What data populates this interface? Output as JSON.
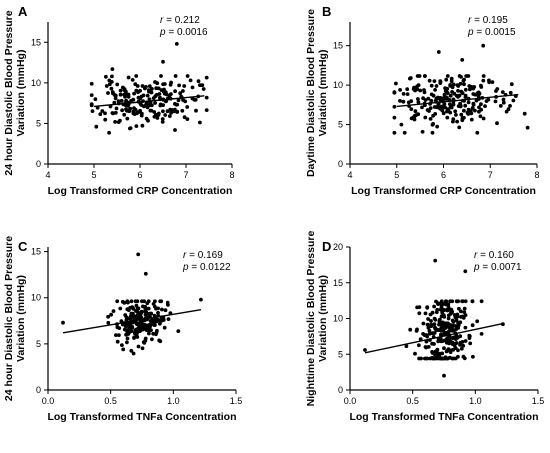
{
  "chart_data": [
    {
      "type": "scatter",
      "panel": "A",
      "xlabel": "Log Transformed CRP Concentration",
      "ylabel_lines": [
        "24 hour Diastolic Blood Pressure",
        "Variation (mmHg)"
      ],
      "xlim": [
        4,
        8
      ],
      "ylim": [
        0,
        17.5
      ],
      "xticks": [
        4,
        5,
        6,
        7,
        8
      ],
      "yticks": [
        0,
        5,
        10,
        15
      ],
      "stat_r": "0.212",
      "stat_p": "0.0016",
      "trend": {
        "x": [
          5.0,
          7.4
        ],
        "y": [
          7.1,
          8.4
        ]
      },
      "points": {
        "center": [
          6.1,
          7.7
        ],
        "spread": [
          0.55,
          1.45
        ],
        "count": 210,
        "seed": 11,
        "xrange": [
          4.95,
          7.45
        ],
        "extra": [
          [
            6.8,
            14.8
          ],
          [
            6.5,
            12.6
          ],
          [
            5.4,
            11.7
          ],
          [
            5.05,
            4.6
          ],
          [
            7.1,
            10.3
          ]
        ]
      }
    },
    {
      "type": "scatter",
      "panel": "B",
      "xlabel": "Log Transformed CRP Concentration",
      "ylabel_lines": [
        "Daytime Diastolic Blood Pressure",
        "Variation (mmHg)"
      ],
      "xlim": [
        4,
        8
      ],
      "ylim": [
        0,
        18
      ],
      "xticks": [
        4,
        5,
        6,
        7,
        8
      ],
      "yticks": [
        0,
        5,
        10,
        15
      ],
      "stat_r": "0.195",
      "stat_p": "0.0015",
      "trend": {
        "x": [
          5.0,
          7.6
        ],
        "y": [
          7.3,
          8.8
        ]
      },
      "points": {
        "center": [
          6.1,
          8.0
        ],
        "spread": [
          0.6,
          1.75
        ],
        "count": 230,
        "seed": 23,
        "xrange": [
          4.95,
          7.8
        ],
        "extra": [
          [
            6.85,
            15.0
          ],
          [
            5.9,
            14.2
          ],
          [
            7.8,
            4.6
          ],
          [
            6.4,
            13.2
          ],
          [
            5.1,
            5.0
          ]
        ]
      }
    },
    {
      "type": "scatter",
      "panel": "C",
      "xlabel": "Log Transformed TNFa Concentration",
      "ylabel_lines": [
        "24 hour Diastolic Blood Pressure",
        "Variation (mmHg)"
      ],
      "xlim": [
        0,
        1.5
      ],
      "ylim": [
        0,
        15.5
      ],
      "xticks": [
        0.0,
        0.5,
        1.0,
        1.5
      ],
      "yticks": [
        0,
        5,
        10,
        15
      ],
      "stat_r": "0.169",
      "stat_p": "0.0122",
      "trend": {
        "x": [
          0.12,
          1.22
        ],
        "y": [
          6.2,
          8.7
        ]
      },
      "points": {
        "center": [
          0.75,
          7.5
        ],
        "spread": [
          0.1,
          1.25
        ],
        "count": 210,
        "seed": 37,
        "xrange": [
          0.45,
          1.05
        ],
        "extra": [
          [
            0.12,
            7.3
          ],
          [
            1.22,
            9.8
          ],
          [
            0.72,
            14.7
          ],
          [
            0.78,
            12.6
          ],
          [
            0.6,
            4.4
          ]
        ]
      }
    },
    {
      "type": "scatter",
      "panel": "D",
      "xlabel": "Log Transformed TNFa Concentration",
      "ylabel_lines": [
        "Nighttime Diastolic Blood Pressure",
        "Variation (mmHg)"
      ],
      "xlim": [
        0,
        1.5
      ],
      "ylim": [
        0,
        20
      ],
      "xticks": [
        0.0,
        0.5,
        1.0,
        1.5
      ],
      "yticks": [
        0,
        5,
        10,
        15,
        20
      ],
      "stat_r": "0.160",
      "stat_p": "0.0071",
      "trend": {
        "x": [
          0.12,
          1.22
        ],
        "y": [
          5.2,
          9.3
        ]
      },
      "points": {
        "center": [
          0.75,
          8.0
        ],
        "spread": [
          0.1,
          2.6
        ],
        "count": 260,
        "seed": 53,
        "xrange": [
          0.45,
          1.05
        ],
        "extra": [
          [
            0.12,
            5.6
          ],
          [
            1.22,
            9.2
          ],
          [
            0.68,
            18.1
          ],
          [
            0.92,
            16.6
          ],
          [
            0.75,
            2.0
          ]
        ]
      }
    }
  ]
}
